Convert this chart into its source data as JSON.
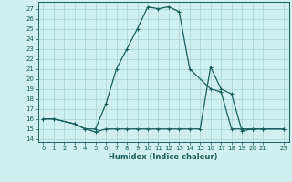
{
  "xlabel": "Humidex (Indice chaleur)",
  "background_color": "#cff0ee",
  "grid_color": "#aad8d5",
  "line_color": "#1a6060",
  "xlim": [
    -0.5,
    23.5
  ],
  "ylim": [
    13.7,
    27.7
  ],
  "xticks": [
    0,
    1,
    2,
    3,
    4,
    5,
    6,
    7,
    8,
    9,
    10,
    11,
    12,
    13,
    14,
    15,
    16,
    17,
    18,
    19,
    20,
    21,
    23
  ],
  "yticks": [
    14,
    15,
    16,
    17,
    18,
    19,
    20,
    21,
    22,
    23,
    24,
    25,
    26,
    27
  ],
  "series1_x": [
    0,
    1,
    3,
    4,
    5,
    6,
    7,
    8,
    9,
    10,
    11,
    12,
    13,
    14,
    16,
    17,
    18,
    19,
    20,
    21,
    23
  ],
  "series1_y": [
    16,
    16,
    15.5,
    15,
    15,
    17.5,
    21,
    23,
    25,
    27.2,
    27,
    27.2,
    26.7,
    21,
    19,
    18.7,
    15,
    15,
    15,
    15,
    15
  ],
  "series2_x": [
    0,
    1,
    3,
    4,
    5,
    6,
    7,
    8,
    9,
    10,
    11,
    12,
    13,
    14,
    15,
    16,
    17,
    18,
    19,
    20,
    21,
    23
  ],
  "series2_y": [
    16,
    16,
    15.5,
    15,
    14.7,
    15,
    15,
    15,
    15,
    15,
    15,
    15,
    15,
    15,
    15,
    21.2,
    19,
    18.5,
    14.8,
    15,
    15,
    15
  ]
}
